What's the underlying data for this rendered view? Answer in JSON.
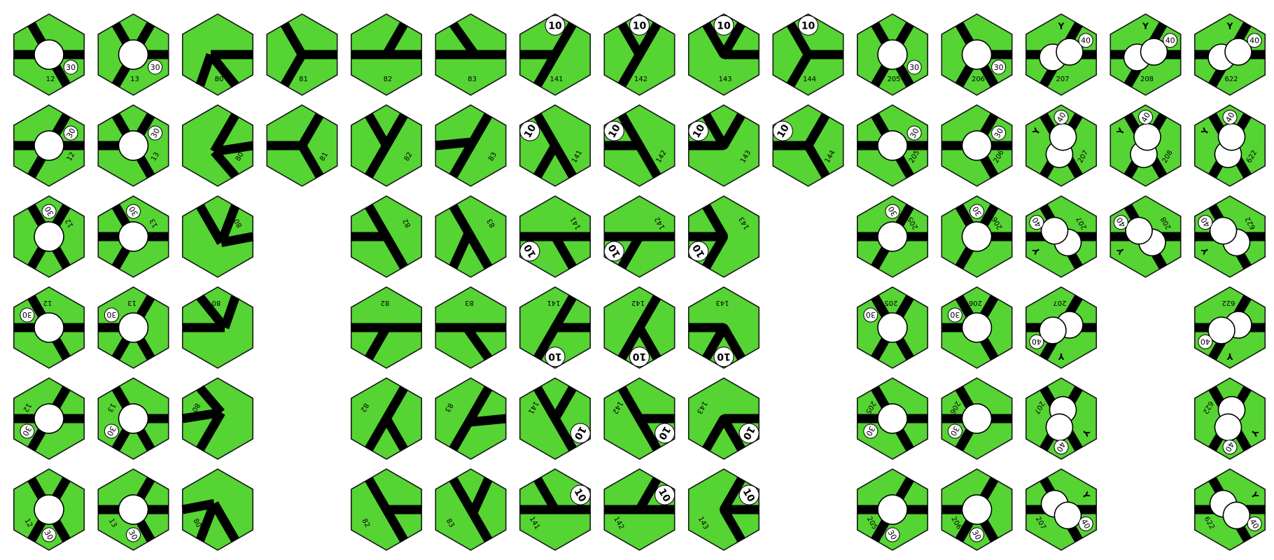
{
  "tile_colors": {
    "fill": "#55d433",
    "border": "#1a1a1a",
    "track": "#000000",
    "city": "#ffffff"
  },
  "tiles": [
    {
      "id": "12",
      "kind": "city1",
      "rots": 6,
      "rev": "30"
    },
    {
      "id": "13",
      "kind": "city1b",
      "rots": 6,
      "rev": "30"
    },
    {
      "id": "80",
      "kind": "j80",
      "rots": 6
    },
    {
      "id": "81",
      "kind": "j81",
      "rots": 2
    },
    {
      "id": "82",
      "kind": "j82",
      "rots": 6
    },
    {
      "id": "83",
      "kind": "j83",
      "rots": 6
    },
    {
      "id": "141",
      "kind": "t141",
      "rots": 6,
      "rev": "10"
    },
    {
      "id": "142",
      "kind": "t142",
      "rots": 6,
      "rev": "10"
    },
    {
      "id": "143",
      "kind": "t143",
      "rots": 6,
      "rev": "10"
    },
    {
      "id": "144",
      "kind": "t144",
      "rots": 2,
      "rev": "10"
    },
    {
      "id": "205",
      "kind": "city205",
      "rots": 6,
      "rev": "30"
    },
    {
      "id": "206",
      "kind": "city206",
      "rots": 6,
      "rev": "30"
    },
    {
      "id": "207",
      "kind": "double",
      "rots": 6,
      "rev": "40",
      "label": "Y"
    },
    {
      "id": "208",
      "kind": "double",
      "rots": 3,
      "rev": "40",
      "label": "Y"
    },
    {
      "id": "622",
      "kind": "double",
      "rots": 6,
      "rev": "40",
      "label": "Y"
    }
  ]
}
